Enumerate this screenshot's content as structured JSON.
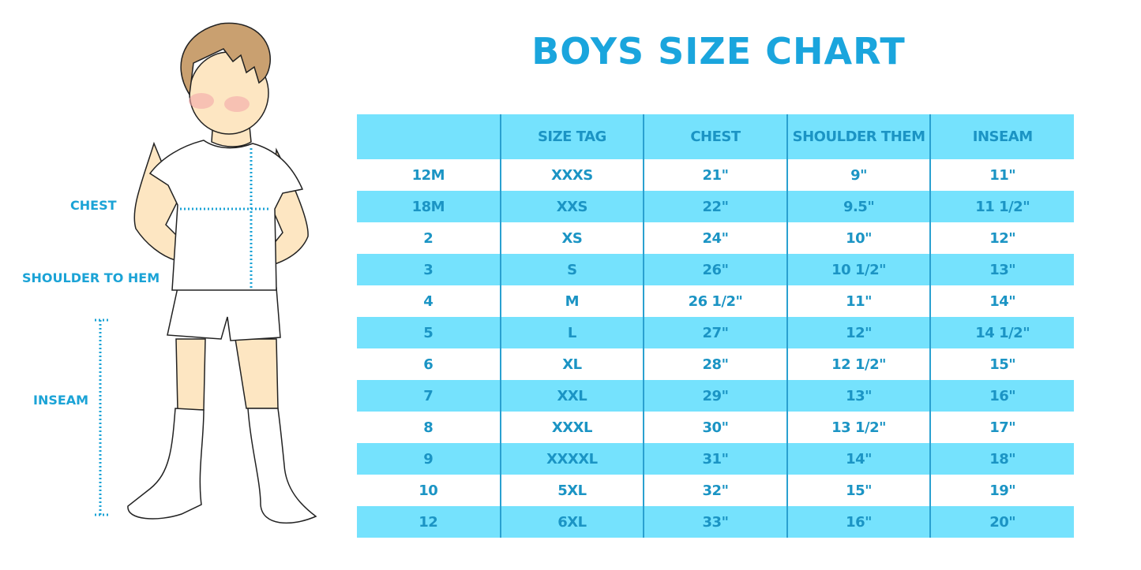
{
  "title": "BOYS SIZE CHART",
  "figure_labels": {
    "chest": "CHEST",
    "shoulder_to_hem": "SHOULDER TO HEM",
    "inseam": "INSEAM"
  },
  "table": {
    "headers": [
      "",
      "SIZE TAG",
      "CHEST",
      "SHOULDER THEM",
      "INSEAM"
    ],
    "rows": [
      [
        "12M",
        "XXXS",
        "21\"",
        "9\"",
        "11\""
      ],
      [
        "18M",
        "XXS",
        "22\"",
        "9.5\"",
        "11 1/2\""
      ],
      [
        "2",
        "XS",
        "24\"",
        "10\"",
        "12\""
      ],
      [
        "3",
        "S",
        "26\"",
        "10 1/2\"",
        "13\""
      ],
      [
        "4",
        "M",
        "26 1/2\"",
        "11\"",
        "14\""
      ],
      [
        "5",
        "L",
        "27\"",
        "12\"",
        "14 1/2\""
      ],
      [
        "6",
        "XL",
        "28\"",
        "12 1/2\"",
        "15\""
      ],
      [
        "7",
        "XXL",
        "29\"",
        "13\"",
        "16\""
      ],
      [
        "8",
        "XXXL",
        "30\"",
        "13 1/2\"",
        "17\""
      ],
      [
        "9",
        "XXXXL",
        "31\"",
        "14\"",
        "18\""
      ],
      [
        "10",
        "5XL",
        "32\"",
        "15\"",
        "19\""
      ],
      [
        "12",
        "6XL",
        "33\"",
        "16\"",
        "20\""
      ]
    ]
  },
  "colors": {
    "accent": "#1aa5dd",
    "row_fill": "#75e2fd",
    "text": "#1b94c4"
  }
}
